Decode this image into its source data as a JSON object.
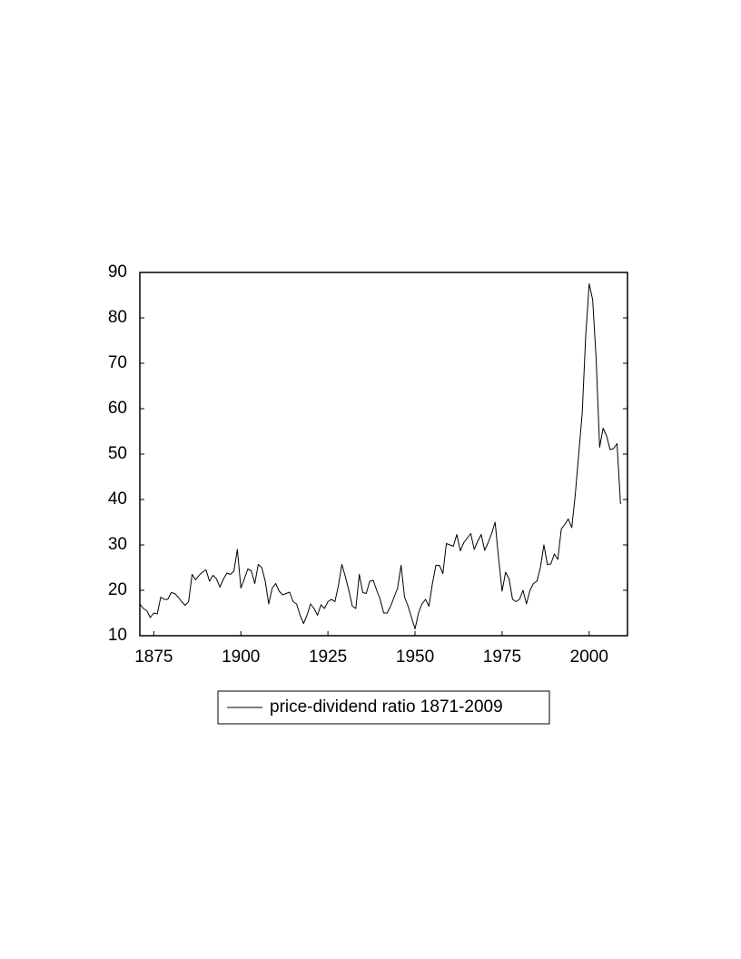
{
  "chart_data": {
    "type": "line",
    "x": [
      1871,
      1872,
      1873,
      1874,
      1875,
      1876,
      1877,
      1878,
      1879,
      1880,
      1881,
      1882,
      1883,
      1884,
      1885,
      1886,
      1887,
      1888,
      1889,
      1890,
      1891,
      1892,
      1893,
      1894,
      1895,
      1896,
      1897,
      1898,
      1899,
      1900,
      1901,
      1902,
      1903,
      1904,
      1905,
      1906,
      1907,
      1908,
      1909,
      1910,
      1911,
      1912,
      1913,
      1914,
      1915,
      1916,
      1917,
      1918,
      1919,
      1920,
      1921,
      1922,
      1923,
      1924,
      1925,
      1926,
      1927,
      1928,
      1929,
      1930,
      1931,
      1932,
      1933,
      1934,
      1935,
      1936,
      1937,
      1938,
      1939,
      1940,
      1941,
      1942,
      1943,
      1944,
      1945,
      1946,
      1947,
      1948,
      1949,
      1950,
      1951,
      1952,
      1953,
      1954,
      1955,
      1956,
      1957,
      1958,
      1959,
      1960,
      1961,
      1962,
      1963,
      1964,
      1965,
      1966,
      1967,
      1968,
      1969,
      1970,
      1971,
      1972,
      1973,
      1974,
      1975,
      1976,
      1977,
      1978,
      1979,
      1980,
      1981,
      1982,
      1983,
      1984,
      1985,
      1986,
      1987,
      1988,
      1989,
      1990,
      1991,
      1992,
      1993,
      1994,
      1995,
      1996,
      1997,
      1998,
      1999,
      2000,
      2001,
      2002,
      2003,
      2004,
      2005,
      2006,
      2007,
      2008,
      2009
    ],
    "series": [
      {
        "name": "price-dividend ratio 1871-2009",
        "color": "#000000",
        "values": [
          17,
          16,
          15.5,
          14,
          15,
          14.8,
          18.5,
          18,
          18,
          19.5,
          19.3,
          18.5,
          17.5,
          16.7,
          17.5,
          23.5,
          22.3,
          23.3,
          24,
          24.5,
          22,
          23.3,
          22.5,
          20.7,
          22.5,
          23.8,
          23.5,
          24.2,
          29,
          20.5,
          22.5,
          24.7,
          24.3,
          21.5,
          25.7,
          25,
          22,
          17,
          20.5,
          21.5,
          19.8,
          19,
          19.3,
          19.6,
          17.5,
          17,
          14.5,
          12.7,
          14.5,
          17,
          16,
          14.5,
          16.8,
          16,
          17.5,
          18,
          17.5,
          21,
          25.7,
          23,
          20,
          16.5,
          16,
          23.5,
          19.5,
          19.3,
          22,
          22.2,
          20,
          18,
          15,
          15,
          16.5,
          18.5,
          20.5,
          25.5,
          18.5,
          16.5,
          14,
          11.5,
          15,
          17,
          18,
          16.5,
          21.5,
          25.5,
          25.5,
          23.7,
          30.3,
          30,
          29.7,
          32.3,
          28.7,
          30.5,
          31.5,
          32.5,
          29,
          30.8,
          32.3,
          28.8,
          30.5,
          32.5,
          35,
          27,
          19.8,
          24,
          22.5,
          18,
          17.5,
          18,
          20,
          17,
          20,
          21.5,
          22,
          25,
          30,
          25.7,
          25.8,
          28,
          26.8,
          33.5,
          34.5,
          35.7,
          33.8,
          41,
          50,
          59,
          76,
          87.5,
          84,
          71,
          51.5,
          55.7,
          54,
          51,
          51.2,
          52.3,
          39
        ]
      }
    ],
    "xlim": [
      1871,
      2011
    ],
    "xticks": [
      1875,
      1900,
      1925,
      1950,
      1975,
      2000
    ],
    "ylim": [
      10,
      90
    ],
    "yticks": [
      10,
      20,
      30,
      40,
      50,
      60,
      70,
      80,
      90
    ],
    "grid": false,
    "legend": "bottom"
  }
}
